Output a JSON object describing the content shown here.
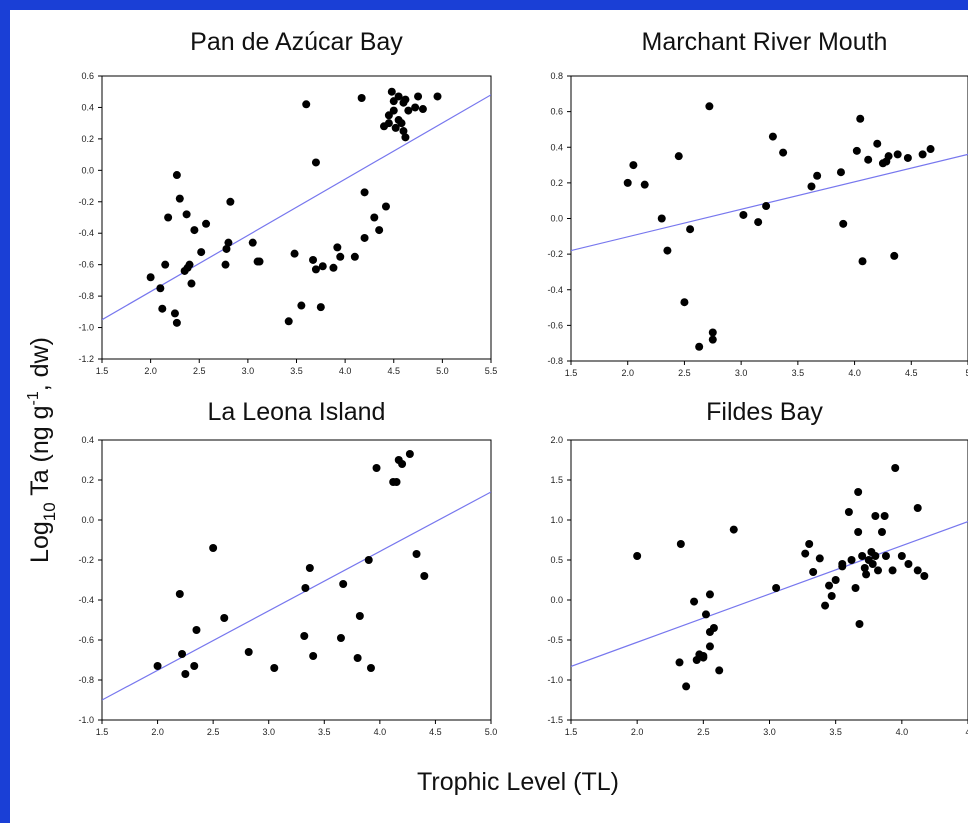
{
  "page": {
    "x_axis_title": "Trophic Level (TL)",
    "y_axis_title_main": "Log",
    "y_axis_title_sub": "10",
    "y_axis_title_rest": " Ta (ng g",
    "y_axis_title_sup": "-1",
    "y_axis_title_end": ", dw)"
  },
  "colors": {
    "frame": "#1a3fd6",
    "regression": "#7777ee",
    "points": "#000000"
  },
  "chart_data": [
    {
      "type": "scatter",
      "title": "Pan de Azúcar Bay",
      "xlim": [
        1.5,
        5.5
      ],
      "ylim": [
        -1.2,
        0.6
      ],
      "x_ticks": [
        "1.5",
        "2.0",
        "2.5",
        "3.0",
        "3.5",
        "4.0",
        "4.5",
        "5.0",
        "5.5"
      ],
      "y_ticks": [
        "-1.2",
        "-1.0",
        "-0.8",
        "-0.6",
        "-0.4",
        "-0.2",
        "0.0",
        "0.2",
        "0.4",
        "0.6"
      ],
      "fit": [
        [
          1.5,
          -0.95
        ],
        [
          5.5,
          0.48
        ]
      ],
      "points": [
        [
          2.0,
          -0.68
        ],
        [
          2.1,
          -0.75
        ],
        [
          2.12,
          -0.88
        ],
        [
          2.15,
          -0.6
        ],
        [
          2.18,
          -0.3
        ],
        [
          2.25,
          -0.91
        ],
        [
          2.27,
          -0.97
        ],
        [
          2.27,
          -0.03
        ],
        [
          2.3,
          -0.18
        ],
        [
          2.35,
          -0.64
        ],
        [
          2.37,
          -0.28
        ],
        [
          2.4,
          -0.6
        ],
        [
          2.42,
          -0.72
        ],
        [
          2.45,
          -0.38
        ],
        [
          2.52,
          -0.52
        ],
        [
          2.57,
          -0.34
        ],
        [
          2.38,
          -0.62
        ],
        [
          2.77,
          -0.6
        ],
        [
          2.8,
          -0.46
        ],
        [
          2.82,
          -0.2
        ],
        [
          2.78,
          -0.5
        ],
        [
          3.05,
          -0.46
        ],
        [
          3.1,
          -0.58
        ],
        [
          3.12,
          -0.58
        ],
        [
          3.42,
          -0.96
        ],
        [
          3.48,
          -0.53
        ],
        [
          3.55,
          -0.86
        ],
        [
          3.6,
          0.42
        ],
        [
          3.67,
          -0.57
        ],
        [
          3.7,
          0.05
        ],
        [
          3.7,
          -0.63
        ],
        [
          3.75,
          -0.87
        ],
        [
          3.77,
          -0.61
        ],
        [
          3.88,
          -0.62
        ],
        [
          3.92,
          -0.49
        ],
        [
          3.95,
          -0.55
        ],
        [
          4.1,
          -0.55
        ],
        [
          4.17,
          0.46
        ],
        [
          4.2,
          -0.14
        ],
        [
          4.2,
          -0.43
        ],
        [
          4.3,
          -0.3
        ],
        [
          4.35,
          -0.38
        ],
        [
          4.42,
          -0.23
        ],
        [
          4.4,
          0.28
        ],
        [
          4.45,
          0.3
        ],
        [
          4.45,
          0.35
        ],
        [
          4.48,
          0.5
        ],
        [
          4.5,
          0.44
        ],
        [
          4.5,
          0.38
        ],
        [
          4.52,
          0.27
        ],
        [
          4.55,
          0.32
        ],
        [
          4.55,
          0.47
        ],
        [
          4.58,
          0.3
        ],
        [
          4.6,
          0.25
        ],
        [
          4.62,
          0.21
        ],
        [
          4.6,
          0.43
        ],
        [
          4.62,
          0.45
        ],
        [
          4.65,
          0.38
        ],
        [
          4.72,
          0.4
        ],
        [
          4.75,
          0.47
        ],
        [
          4.8,
          0.39
        ],
        [
          4.95,
          0.47
        ]
      ]
    },
    {
      "type": "scatter",
      "title": "Marchant River Mouth",
      "xlim": [
        1.5,
        5.0
      ],
      "ylim": [
        -0.8,
        0.8
      ],
      "x_ticks": [
        "1.5",
        "2.0",
        "2.5",
        "3.0",
        "3.5",
        "4.0",
        "4.5",
        "5"
      ],
      "y_ticks": [
        "-0.8",
        "-0.6",
        "-0.4",
        "-0.2",
        "0.0",
        "0.2",
        "0.4",
        "0.6",
        "0.8"
      ],
      "fit": [
        [
          1.5,
          -0.18
        ],
        [
          5.0,
          0.36
        ]
      ],
      "points": [
        [
          2.0,
          0.2
        ],
        [
          2.05,
          0.3
        ],
        [
          2.15,
          0.19
        ],
        [
          2.3,
          0.0
        ],
        [
          2.35,
          -0.18
        ],
        [
          2.45,
          0.35
        ],
        [
          2.5,
          -0.47
        ],
        [
          2.55,
          -0.06
        ],
        [
          2.63,
          -0.72
        ],
        [
          2.72,
          0.63
        ],
        [
          2.75,
          -0.64
        ],
        [
          2.75,
          -0.68
        ],
        [
          3.02,
          0.02
        ],
        [
          3.15,
          -0.02
        ],
        [
          3.22,
          0.07
        ],
        [
          3.28,
          0.46
        ],
        [
          3.37,
          0.37
        ],
        [
          3.62,
          0.18
        ],
        [
          3.67,
          0.24
        ],
        [
          3.88,
          0.26
        ],
        [
          3.9,
          -0.03
        ],
        [
          4.02,
          0.38
        ],
        [
          4.05,
          0.56
        ],
        [
          4.07,
          -0.24
        ],
        [
          4.12,
          0.33
        ],
        [
          4.2,
          0.42
        ],
        [
          4.25,
          0.31
        ],
        [
          4.28,
          0.32
        ],
        [
          4.3,
          0.35
        ],
        [
          4.35,
          -0.21
        ],
        [
          4.38,
          0.36
        ],
        [
          4.47,
          0.34
        ],
        [
          4.6,
          0.36
        ],
        [
          4.67,
          0.39
        ]
      ]
    },
    {
      "type": "scatter",
      "title": "La Leona Island",
      "xlim": [
        1.5,
        5.0
      ],
      "ylim": [
        -1.0,
        0.4
      ],
      "x_ticks": [
        "1.5",
        "2.0",
        "2.5",
        "3.0",
        "3.5",
        "4.0",
        "4.5",
        "5.0"
      ],
      "y_ticks": [
        "-1.0",
        "-0.8",
        "-0.6",
        "-0.4",
        "-0.2",
        "0.0",
        "0.2",
        "0.4"
      ],
      "fit": [
        [
          1.5,
          -0.9
        ],
        [
          5.0,
          0.14
        ]
      ],
      "points": [
        [
          2.0,
          -0.73
        ],
        [
          2.2,
          -0.37
        ],
        [
          2.22,
          -0.67
        ],
        [
          2.25,
          -0.77
        ],
        [
          2.33,
          -0.73
        ],
        [
          2.35,
          -0.55
        ],
        [
          2.5,
          -0.14
        ],
        [
          2.6,
          -0.49
        ],
        [
          2.82,
          -0.66
        ],
        [
          3.05,
          -0.74
        ],
        [
          3.32,
          -0.58
        ],
        [
          3.33,
          -0.34
        ],
        [
          3.37,
          -0.24
        ],
        [
          3.4,
          -0.68
        ],
        [
          3.65,
          -0.59
        ],
        [
          3.67,
          -0.32
        ],
        [
          3.8,
          -0.69
        ],
        [
          3.82,
          -0.48
        ],
        [
          3.9,
          -0.2
        ],
        [
          3.92,
          -0.74
        ],
        [
          3.97,
          0.26
        ],
        [
          4.12,
          0.19
        ],
        [
          4.15,
          0.19
        ],
        [
          4.17,
          0.3
        ],
        [
          4.2,
          0.28
        ],
        [
          4.27,
          0.33
        ],
        [
          4.33,
          -0.17
        ],
        [
          4.4,
          -0.28
        ]
      ]
    },
    {
      "type": "scatter",
      "title": "Fildes Bay",
      "xlim": [
        1.5,
        4.5
      ],
      "ylim": [
        -1.5,
        2.0
      ],
      "x_ticks": [
        "1.5",
        "2.0",
        "2.5",
        "3.0",
        "3.5",
        "4.0",
        "4"
      ],
      "y_ticks": [
        "-1.5",
        "-1.0",
        "-0.5",
        "0.0",
        "0.5",
        "1.0",
        "1.5",
        "2.0"
      ],
      "fit": [
        [
          1.5,
          -0.83
        ],
        [
          4.5,
          0.98
        ]
      ],
      "points": [
        [
          2.0,
          0.55
        ],
        [
          2.33,
          0.7
        ],
        [
          2.32,
          -0.78
        ],
        [
          2.37,
          -1.08
        ],
        [
          2.43,
          -0.02
        ],
        [
          2.45,
          -0.75
        ],
        [
          2.47,
          -0.68
        ],
        [
          2.5,
          -0.72
        ],
        [
          2.5,
          -0.7
        ],
        [
          2.52,
          -0.18
        ],
        [
          2.55,
          0.07
        ],
        [
          2.55,
          -0.4
        ],
        [
          2.55,
          -0.58
        ],
        [
          2.58,
          -0.35
        ],
        [
          2.62,
          -0.88
        ],
        [
          2.73,
          0.88
        ],
        [
          3.05,
          0.15
        ],
        [
          3.27,
          0.58
        ],
        [
          3.3,
          0.7
        ],
        [
          3.33,
          0.35
        ],
        [
          3.38,
          0.52
        ],
        [
          3.42,
          -0.07
        ],
        [
          3.45,
          0.18
        ],
        [
          3.47,
          0.05
        ],
        [
          3.5,
          0.25
        ],
        [
          3.55,
          0.42
        ],
        [
          3.55,
          0.45
        ],
        [
          3.6,
          1.1
        ],
        [
          3.62,
          0.5
        ],
        [
          3.65,
          0.15
        ],
        [
          3.67,
          1.35
        ],
        [
          3.67,
          0.85
        ],
        [
          3.68,
          -0.3
        ],
        [
          3.7,
          0.55
        ],
        [
          3.72,
          0.4
        ],
        [
          3.73,
          0.32
        ],
        [
          3.75,
          0.5
        ],
        [
          3.77,
          0.6
        ],
        [
          3.78,
          0.45
        ],
        [
          3.8,
          1.05
        ],
        [
          3.8,
          0.55
        ],
        [
          3.82,
          0.37
        ],
        [
          3.85,
          0.85
        ],
        [
          3.87,
          1.05
        ],
        [
          3.88,
          0.55
        ],
        [
          3.93,
          0.37
        ],
        [
          3.95,
          1.65
        ],
        [
          4.0,
          0.55
        ],
        [
          4.05,
          0.45
        ],
        [
          4.12,
          1.15
        ],
        [
          4.12,
          0.37
        ],
        [
          4.17,
          0.3
        ]
      ]
    }
  ]
}
